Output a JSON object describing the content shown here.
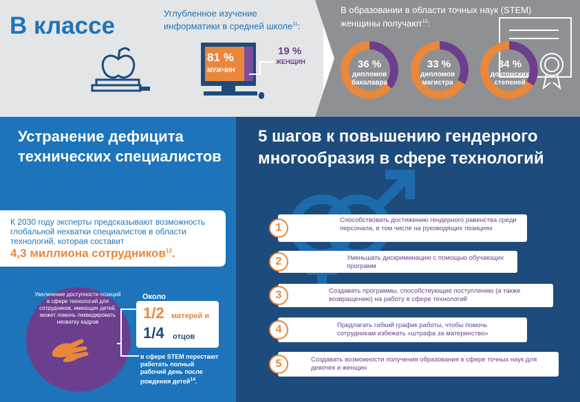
{
  "top": {
    "title": "В классе",
    "cs_title": "Углубленное изучение информатики в средней школе",
    "cs_sup": "11",
    "men_pct": "81 %",
    "men_label": "МУЖЧИН",
    "women_pct": "19 %",
    "women_label": "ЖЕНЩИН",
    "stem_title": "В образовании в области точных наук (STEM) женщины получают",
    "stem_sup": "12",
    "donuts": [
      {
        "pct": "36 %",
        "label1": "дипломов",
        "label2": "бакалавра",
        "fraction": 0.36
      },
      {
        "pct": "33 %",
        "label1": "дипломов",
        "label2": "магистра",
        "fraction": 0.33
      },
      {
        "pct": "34 %",
        "label1": "докторских",
        "label2": "степеней",
        "fraction": 0.34
      }
    ]
  },
  "left": {
    "title": "Устранение дефицита технических специалистов",
    "forecast_text": "К 2030 году эксперты предсказывают возможность глобальной нехватки специалистов в области технологий, которая составит",
    "forecast_value": "4,3 миллиона сотрудников",
    "forecast_sup": "13",
    "circle_text": "Увеличение доступности позиций в сфере технологий для сотрудников, имеющих детей, может помочь ликвидировать нехватку кадров",
    "about": "Около",
    "half": "1/2",
    "half_label": "матерей и",
    "quarter": "1/4",
    "quarter_label": "отцов",
    "stop_text": "в сфере STEM перестают работать полный рабочий день после рождения детей",
    "stop_sup": "14"
  },
  "right": {
    "title": "5 шагов к повышению гендерного многообразия в сфере технологий",
    "steps": [
      {
        "num": "1",
        "text": "Способствовать достижению гендерного равенства среди персонала, в том числе на руководящих позициях"
      },
      {
        "num": "2",
        "text": "Уменьшать дискриминацию с помощью обучающих программ"
      },
      {
        "num": "3",
        "text": "Создавать программы, способствующие поступлению (а также возвращению) на работу в сфере технологий"
      },
      {
        "num": "4",
        "text": "Предлагать гибкий график работы, чтобы помочь сотрудникам избежать «штрафа за материнство»"
      },
      {
        "num": "5",
        "text": "Создавать возможности получения образования в сфере точных наук для девочек и женщин"
      }
    ]
  },
  "colors": {
    "blue": "#1d74ba",
    "navy": "#1d4b7c",
    "orange": "#e9873b",
    "purple": "#6b3f8e",
    "gray": "#8e9094"
  }
}
